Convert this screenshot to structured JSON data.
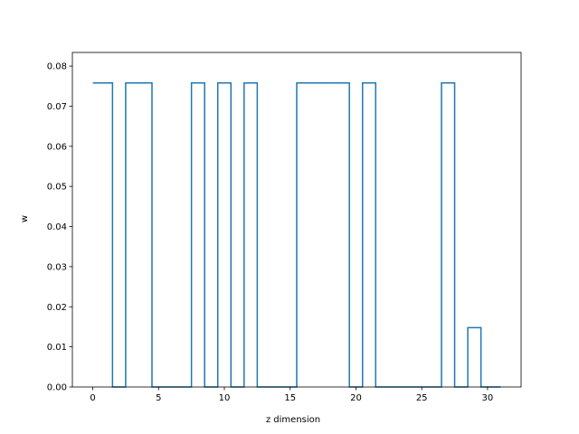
{
  "chart_data": {
    "type": "line",
    "drawstyle": "steps-mid",
    "title": "",
    "xlabel": "z dimension",
    "ylabel": "w",
    "xlim": [
      -1.55,
      32.55
    ],
    "ylim": [
      0.0,
      0.0834
    ],
    "xticks": [
      0,
      5,
      10,
      15,
      20,
      25,
      30
    ],
    "yticks": [
      0.0,
      0.01,
      0.02,
      0.03,
      0.04,
      0.05,
      0.06,
      0.07,
      0.08
    ],
    "ytick_labels": [
      "0.00",
      "0.01",
      "0.02",
      "0.03",
      "0.04",
      "0.05",
      "0.06",
      "0.07",
      "0.08"
    ],
    "grid": false,
    "series": [
      {
        "color": "#1f77b4",
        "x": [
          0,
          1,
          2,
          3,
          4,
          5,
          6,
          7,
          8,
          9,
          10,
          11,
          12,
          13,
          14,
          15,
          16,
          17,
          18,
          19,
          20,
          21,
          22,
          23,
          24,
          25,
          26,
          27,
          28,
          29,
          30,
          31
        ],
        "values": [
          0.0758,
          0.0758,
          0,
          0.0758,
          0.0758,
          0,
          0,
          0,
          0.0758,
          0,
          0.0758,
          0,
          0.0758,
          0,
          0,
          0,
          0.0758,
          0.0758,
          0.0758,
          0.0758,
          0,
          0.0758,
          0,
          0,
          0,
          0,
          0,
          0.0758,
          0,
          0.0148,
          0,
          0
        ]
      }
    ]
  }
}
